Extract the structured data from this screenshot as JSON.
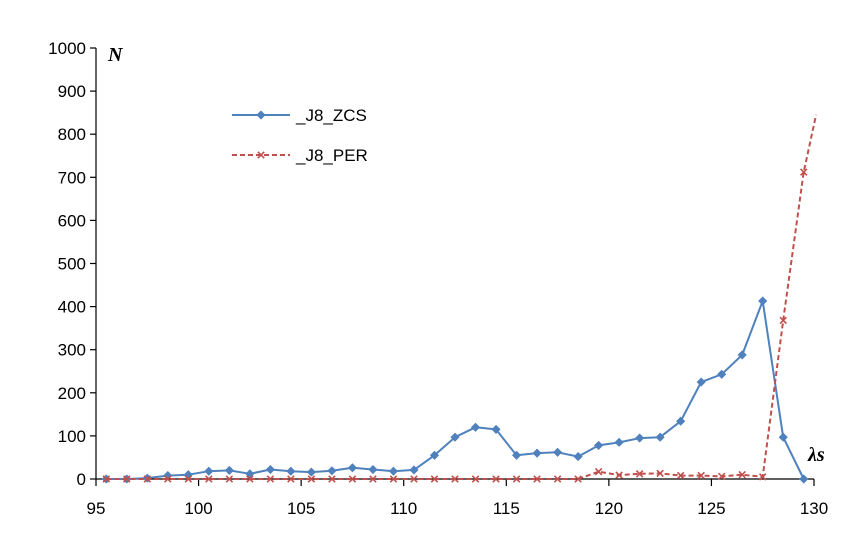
{
  "chart_data": {
    "type": "line",
    "xlabel": "λs",
    "ylabel": "N",
    "xlim": [
      95,
      130
    ],
    "ylim": [
      0,
      1000
    ],
    "xticks": [
      95,
      100,
      105,
      110,
      115,
      120,
      125,
      130
    ],
    "yticks": [
      0,
      100,
      200,
      300,
      400,
      500,
      600,
      700,
      800,
      900,
      1000
    ],
    "grid": false,
    "legend_position": "top-left",
    "series": [
      {
        "name": "_J8_ZCS",
        "color": "#4F81BD",
        "marker": "diamond",
        "line_style": "solid",
        "x": [
          95.5,
          96.5,
          97.5,
          98.5,
          99.5,
          100.5,
          101.5,
          102.5,
          103.5,
          104.5,
          105.5,
          106.5,
          107.5,
          108.5,
          109.5,
          110.5,
          111.5,
          112.5,
          113.5,
          114.5,
          115.5,
          116.5,
          117.5,
          118.5,
          119.5,
          120.5,
          121.5,
          122.5,
          123.5,
          124.5,
          125.5,
          126.5,
          127.5,
          128.5,
          129.5
        ],
        "y": [
          0,
          0,
          2,
          8,
          10,
          18,
          20,
          12,
          22,
          18,
          16,
          19,
          26,
          22,
          18,
          21,
          55,
          97,
          120,
          115,
          55,
          60,
          62,
          52,
          78,
          85,
          95,
          97,
          134,
          225,
          243,
          288,
          413,
          97,
          0
        ]
      },
      {
        "name": "_J8_PER",
        "color": "#C0504D",
        "marker": "x",
        "line_style": "dashed",
        "x": [
          95.5,
          96.5,
          97.5,
          98.5,
          99.5,
          100.5,
          101.5,
          102.5,
          103.5,
          104.5,
          105.5,
          106.5,
          107.5,
          108.5,
          109.5,
          110.5,
          111.5,
          112.5,
          113.5,
          114.5,
          115.5,
          116.5,
          117.5,
          118.5,
          119.5,
          120.5,
          121.5,
          122.5,
          123.5,
          124.5,
          125.5,
          126.5,
          127.5,
          128.5,
          129.5,
          130.1
        ],
        "y": [
          0,
          0,
          0,
          0,
          0,
          0,
          0,
          0,
          0,
          0,
          0,
          0,
          0,
          0,
          0,
          0,
          0,
          0,
          0,
          0,
          0,
          0,
          0,
          0,
          17,
          9,
          12,
          13,
          8,
          8,
          6,
          10,
          5,
          368,
          712,
          845
        ]
      }
    ]
  }
}
